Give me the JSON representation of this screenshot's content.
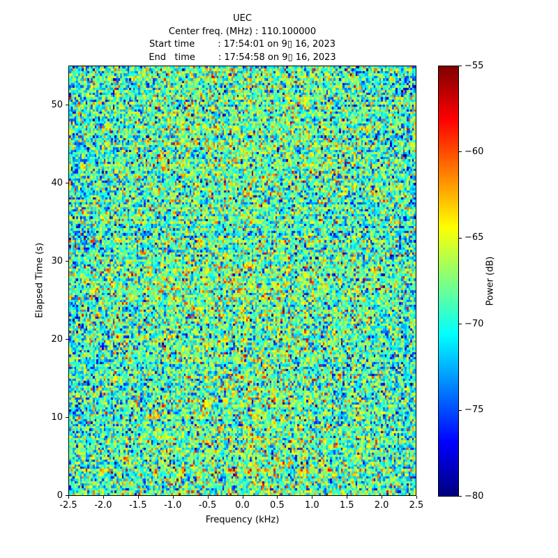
{
  "header": {
    "title": "UEC",
    "line_center_freq": "Center freq. (MHz) : 110.100000",
    "line_start_time": "Start time        : 17:54:01 on 9▯ 16, 2023",
    "line_end_time": "End   time        : 17:54:58 on 9▯ 16, 2023"
  },
  "chart_data": {
    "type": "heatmap",
    "title": "UEC",
    "subtitle_lines": [
      "Center freq. (MHz) : 110.100000",
      "Start time        : 17:54:01 on 9▯ 16, 2023",
      "End   time        : 17:54:58 on 9▯ 16, 2023"
    ],
    "center_freq_mhz": 110.1,
    "start_time": "17:54:01 on 9▯ 16, 2023",
    "end_time": "17:54:58 on 9▯ 16, 2023",
    "xlabel": "Frequency (kHz)",
    "ylabel": "Elapsed Time (s)",
    "xlim": [
      -2.5,
      2.5
    ],
    "ylim": [
      0,
      55
    ],
    "grid": false,
    "xtick_values": [
      -2.5,
      -2.0,
      -1.5,
      -1.0,
      -0.5,
      0.0,
      0.5,
      1.0,
      1.5,
      2.0,
      2.5
    ],
    "xtick_labels": [
      "-2.5",
      "-2.0",
      "-1.5",
      "-1.0",
      "-0.5",
      "0.0",
      "0.5",
      "1.0",
      "1.5",
      "2.0",
      "2.5"
    ],
    "ytick_values": [
      0,
      10,
      20,
      30,
      40,
      50
    ],
    "ytick_labels": [
      "0",
      "10",
      "20",
      "30",
      "40",
      "50"
    ],
    "colorbar": {
      "label": "Power (dB)",
      "range_db": [
        -80,
        -55
      ],
      "tick_values": [
        -55,
        -60,
        -65,
        -70,
        -75,
        -80
      ],
      "tick_labels": [
        "−55",
        "−60",
        "−65",
        "−70",
        "−75",
        "−80"
      ],
      "colormap": "jet",
      "gradient_stops": [
        {
          "pos": 0.0,
          "color": "#00007f"
        },
        {
          "pos": 0.125,
          "color": "#0000ff"
        },
        {
          "pos": 0.375,
          "color": "#00ffff"
        },
        {
          "pos": 0.625,
          "color": "#ffff00"
        },
        {
          "pos": 0.875,
          "color": "#ff0000"
        },
        {
          "pos": 1.0,
          "color": "#7f0000"
        }
      ]
    },
    "heatmap_model": {
      "description": "broadband random noise field, per-cell power in dB mapped through jet colormap",
      "mean_db": -69,
      "std_db": 4,
      "center_boost_db": 0.9,
      "center_width_khz": 1.4,
      "edge_dip_db": 1.0,
      "edge_width_khz": 0.28,
      "row_jitter_db": 0.7,
      "freq_bins": 190,
      "time_bins": 180,
      "seed": 20230916
    },
    "axes_color": "#000000",
    "text_color": "#000000",
    "background_color": "#ffffff"
  }
}
